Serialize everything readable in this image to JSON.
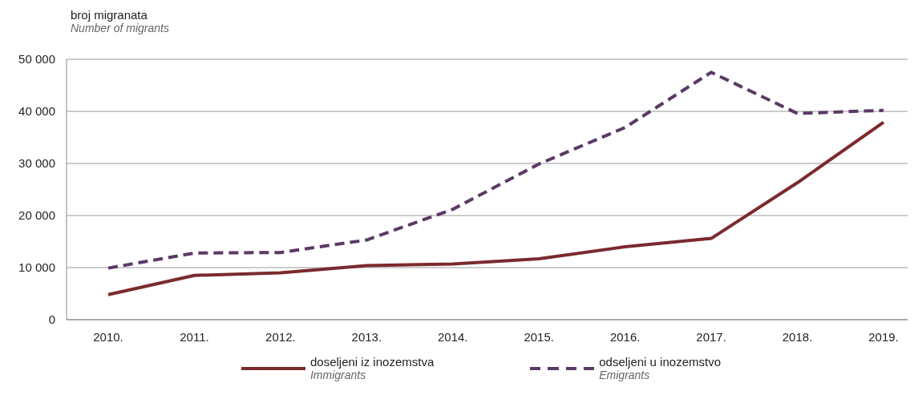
{
  "chart_data": {
    "type": "line",
    "ylabel": "broj migranata\nNumber of migrants",
    "categories": [
      "2010.",
      "2011.",
      "2012.",
      "2013.",
      "2014.",
      "2015.",
      "2016.",
      "2017.",
      "2018.",
      "2019."
    ],
    "series": [
      {
        "name": "doseljeni iz inozemstva\nImmigrants",
        "color": "#7b2a2e",
        "line_style": "solid",
        "values": [
          4800,
          8500,
          9000,
          10400,
          10700,
          11700,
          14000,
          15600,
          26300,
          37900
        ]
      },
      {
        "name": "odseljeni u inozemstvo\nEmigrants",
        "color": "#5b3a66",
        "line_style": "dashed",
        "values": [
          9900,
          12800,
          12900,
          15300,
          21200,
          29900,
          36900,
          47500,
          39600,
          40200
        ]
      }
    ],
    "ylim": [
      0,
      50000
    ],
    "yticks": [
      {
        "value": 0,
        "label": "0"
      },
      {
        "value": 10000,
        "label": "10 000"
      },
      {
        "value": 20000,
        "label": "20 000"
      },
      {
        "value": 30000,
        "label": "30 000"
      },
      {
        "value": 40000,
        "label": "40 000"
      },
      {
        "value": 50000,
        "label": "50 000"
      }
    ],
    "grid": "y",
    "legend": "bottom",
    "marker": "none"
  }
}
